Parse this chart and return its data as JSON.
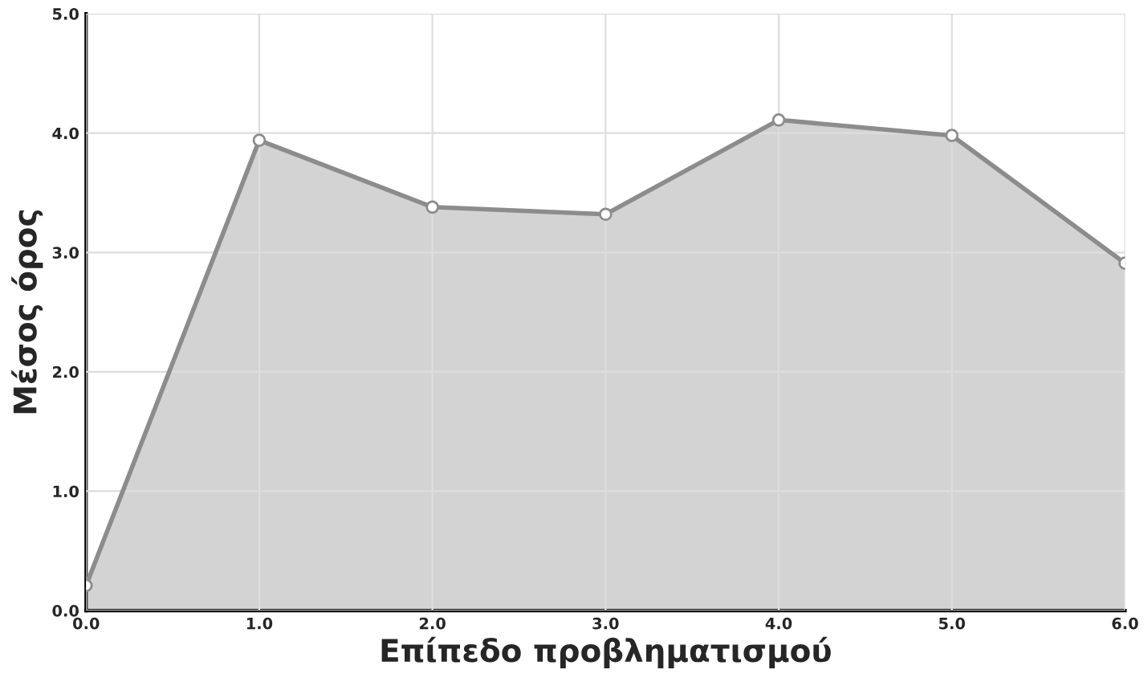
{
  "chart_data": {
    "type": "area",
    "xlabel": "Επίπεδο προβληματισμού",
    "ylabel": "Μέσος όρος",
    "x": [
      0,
      1,
      2,
      3,
      4,
      5,
      6
    ],
    "series": [
      {
        "color": "#8c8c8c",
        "values": [
          0.21,
          3.94,
          3.38,
          3.32,
          4.11,
          3.98,
          2.91
        ]
      }
    ],
    "xlim": [
      0,
      6
    ],
    "ylim": [
      0,
      5
    ],
    "xticks": [
      {
        "value": 0,
        "label": "0.0"
      },
      {
        "value": 1,
        "label": "1.0"
      },
      {
        "value": 2,
        "label": "2.0"
      },
      {
        "value": 3,
        "label": "3.0"
      },
      {
        "value": 4,
        "label": "4.0"
      },
      {
        "value": 5,
        "label": "5.0"
      },
      {
        "value": 6,
        "label": "6.0"
      }
    ],
    "yticks": [
      {
        "value": 0,
        "label": "0.0"
      },
      {
        "value": 1,
        "label": "1.0"
      },
      {
        "value": 2,
        "label": "2.0"
      },
      {
        "value": 3,
        "label": "3.0"
      },
      {
        "value": 4,
        "label": "4.0"
      },
      {
        "value": 5,
        "label": "5.0"
      }
    ],
    "grid": true,
    "marker": "circle"
  }
}
